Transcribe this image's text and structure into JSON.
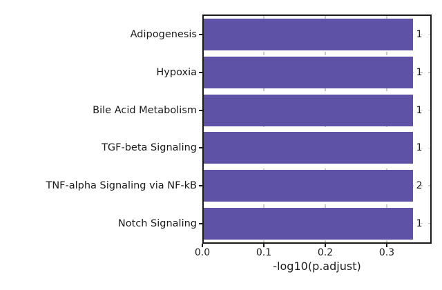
{
  "figure": {
    "background": "#ffffff"
  },
  "chart_data": {
    "type": "bar",
    "orientation": "horizontal",
    "title": "",
    "categories": [
      "Adipogenesis",
      "Hypoxia",
      "Bile Acid Metabolism",
      "TGF-beta Signaling",
      "TNF-alpha Signaling via NF-kB",
      "Notch Signaling"
    ],
    "values": [
      0.34,
      0.34,
      0.34,
      0.34,
      0.34,
      0.34
    ],
    "bar_end_labels": [
      "1",
      "1",
      "1",
      "1",
      "2",
      "1"
    ],
    "xlabel": "-log10(p.adjust)",
    "ylabel": "",
    "x_ticks": [
      "0.0",
      "0.1",
      "0.2",
      "0.3"
    ],
    "x_tick_values": [
      0.0,
      0.1,
      0.2,
      0.3
    ],
    "xlim": [
      0,
      0.373
    ],
    "grid": "dashed, both axes, behind bars",
    "legend": "none",
    "colors": {
      "bar": "#5d52a5",
      "grid": "#c9c9c9",
      "spine": "#1a1a1a",
      "text": "#1a1a1a"
    }
  }
}
